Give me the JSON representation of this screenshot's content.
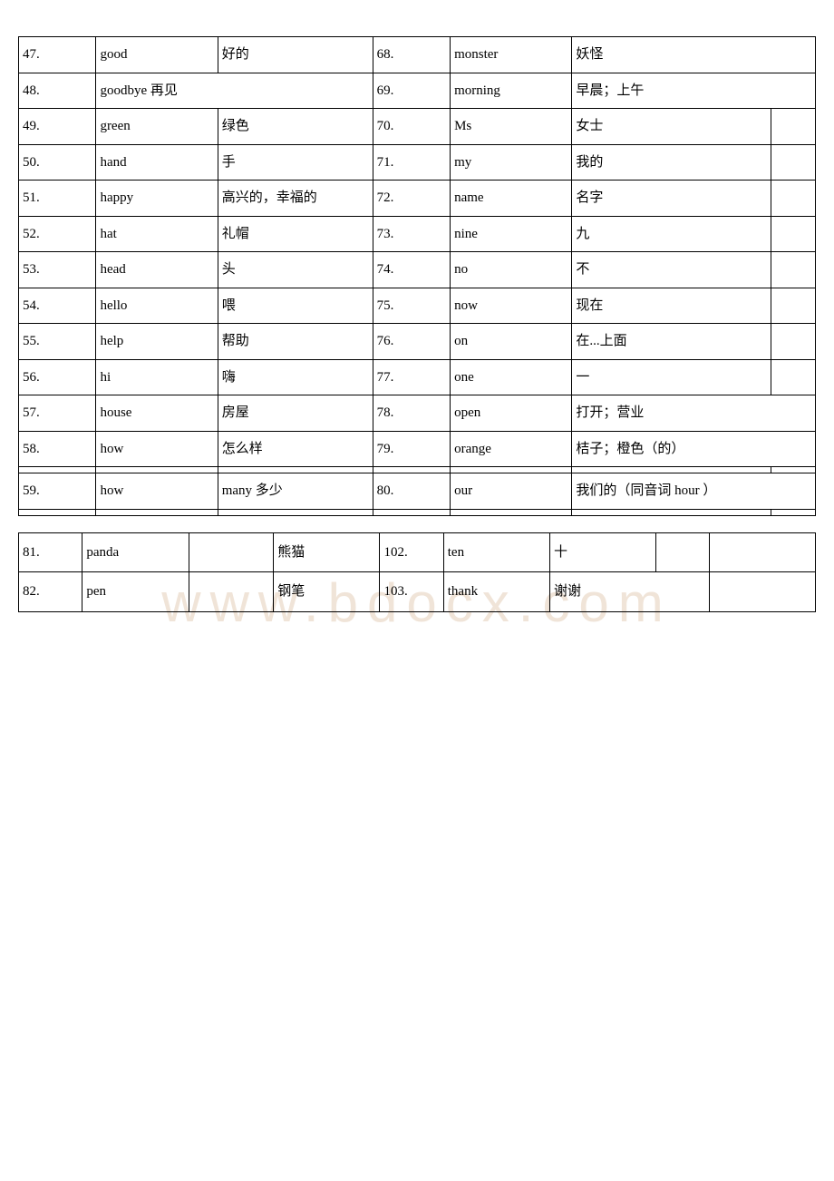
{
  "watermark": "www.bdocx.com",
  "rows": [
    {
      "n1": "47.",
      "w1": "good",
      "d1": "好的",
      "n2": "68.",
      "w2": "monster",
      "d2": "妖怪"
    },
    {
      "n1": "48.",
      "w1": "goodbye 再见",
      "d1": "",
      "n2": "69.",
      "w2": "morning",
      "d2": "早晨；上午"
    },
    {
      "n1": "49.",
      "w1": "green",
      "d1": "绿色",
      "n2": "70.",
      "w2": "Ms",
      "d2": "女士"
    },
    {
      "n1": "50.",
      "w1": "hand",
      "d1": "手",
      "n2": "71.",
      "w2": "my",
      "d2": "我的"
    },
    {
      "n1": "51.",
      "w1": "happy",
      "d1": "高兴的，幸福的",
      "n2": "72.",
      "w2": "name",
      "d2": "名字"
    },
    {
      "n1": "52.",
      "w1": "hat",
      "d1": "礼帽",
      "n2": "73.",
      "w2": "nine",
      "d2": "九"
    },
    {
      "n1": "53.",
      "w1": "head",
      "d1": "头",
      "n2": "74.",
      "w2": "no",
      "d2": "不"
    },
    {
      "n1": "54.",
      "w1": "hello",
      "d1": "喂",
      "n2": "75.",
      "w2": "now",
      "d2": "现在"
    },
    {
      "n1": "55.",
      "w1": "help",
      "d1": "帮助",
      "n2": "76.",
      "w2": "on",
      "d2": "在...上面"
    },
    {
      "n1": "56.",
      "w1": "hi",
      "d1": "嗨",
      "n2": "77.",
      "w2": "one",
      "d2": "一"
    },
    {
      "n1": "57.",
      "w1": "house",
      "d1": "房屋",
      "n2": "78.",
      "w2": "open",
      "d2": "打开；营业"
    },
    {
      "n1": "58.",
      "w1": "how",
      "d1": "怎么样",
      "n2": "79.",
      "w2": "orange",
      "d2": "桔子；橙色（的）"
    },
    {
      "n1": "59.",
      "w1": "how",
      "d1": "many 多少",
      "n2": "80.",
      "w2": "our",
      "d2": "我们的（同音词 hour ）"
    }
  ],
  "rows2": [
    {
      "n1": "81.",
      "w1": "panda",
      "d1": "熊猫",
      "n2": "102.",
      "w2": "ten",
      "d2": "十"
    },
    {
      "n1": "82.",
      "w1": "pen",
      "d1": "钢笔",
      "n2": "103.",
      "w2": "thank",
      "d2": "谢谢"
    }
  ],
  "colors": {
    "border": "#000000",
    "bg": "#ffffff",
    "watermark": "#f0e4d8"
  }
}
